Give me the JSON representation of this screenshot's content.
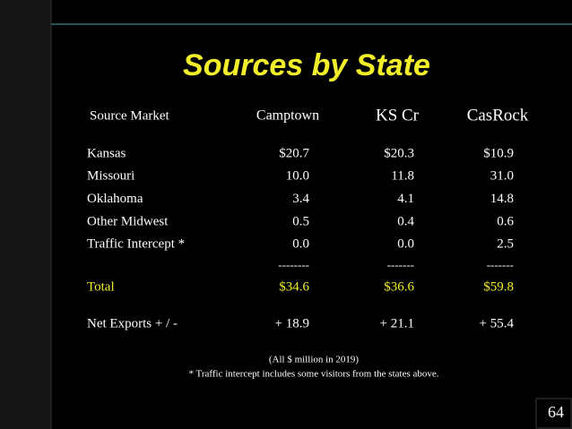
{
  "title": "Sources by State",
  "table": {
    "header": [
      "Source Market",
      "Camptown",
      "KS Cr",
      "CasRock"
    ],
    "rows": [
      [
        "Kansas",
        "$20.7",
        "$20.3",
        "$10.9"
      ],
      [
        "Missouri",
        "10.0",
        "11.8",
        "31.0"
      ],
      [
        "Oklahoma",
        "3.4",
        "4.1",
        "14.8"
      ],
      [
        "Other Midwest",
        "0.5",
        "0.4",
        "0.6"
      ],
      [
        "Traffic Intercept *",
        "0.0",
        "0.0",
        "2.5"
      ]
    ],
    "separator": [
      "--------",
      "-------",
      "-------"
    ],
    "total": [
      "Total",
      "$34.6",
      "$36.6",
      "$59.8"
    ],
    "net_exports": [
      "Net Exports + / -",
      "+ 18.9",
      "+ 21.1",
      "+ 55.4"
    ]
  },
  "notes": [
    "(All $ million in 2019)",
    "* Traffic intercept includes some visitors from the states above."
  ],
  "page_number": "64"
}
